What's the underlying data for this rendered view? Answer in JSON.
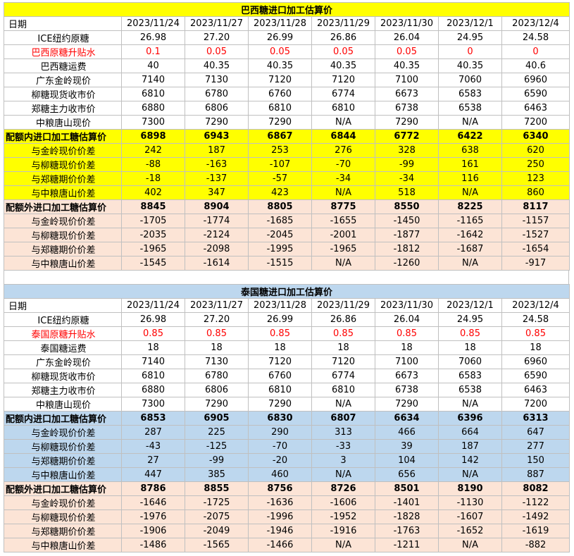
{
  "tables": [
    {
      "title": "巴西糖进口加工估算价",
      "header": [
        "日期",
        "2023/11/24",
        "2023/11/27",
        "2023/11/28",
        "2023/11/29",
        "2023/11/30",
        "2023/12/1",
        "2023/12/4"
      ],
      "rows": [
        [
          "ICE纽约原糖",
          "26.98",
          "27.20",
          "26.99",
          "26.86",
          "26.04",
          "24.95",
          "24.58"
        ],
        [
          "巴西原糖升贴水",
          "0.1",
          "0.05",
          "0.05",
          "0.05",
          "0.05",
          "0",
          "0"
        ],
        [
          "巴西糖运费",
          "40",
          "40.35",
          "40.35",
          "40.35",
          "40.35",
          "40.35",
          "40.6"
        ],
        [
          "广东金岭现价",
          "7140",
          "7130",
          "7120",
          "7120",
          "7100",
          "7060",
          "6960"
        ],
        [
          "柳糖现货收市价",
          "6810",
          "6780",
          "6760",
          "6774",
          "6673",
          "6583",
          "6590"
        ],
        [
          "郑糖主力收市价",
          "6880",
          "6806",
          "6810",
          "6810",
          "6738",
          "6538",
          "6463"
        ],
        [
          "中粮唐山现价",
          "7300",
          "7290",
          "7290",
          "N/A",
          "7290",
          "N/A",
          "7200"
        ],
        [
          "配额内进口加工糖估算价",
          "6898",
          "6943",
          "6867",
          "6844",
          "6772",
          "6422",
          "6340"
        ],
        [
          "与金岭现价价差",
          "242",
          "187",
          "253",
          "276",
          "328",
          "638",
          "620"
        ],
        [
          "与柳糖现价价差",
          "-88",
          "-163",
          "-107",
          "-70",
          "-99",
          "161",
          "250"
        ],
        [
          "与郑糖期价价差",
          "-18",
          "-137",
          "-57",
          "-34",
          "-34",
          "116",
          "123"
        ],
        [
          "与中粮唐山价差",
          "402",
          "347",
          "423",
          "N/A",
          "518",
          "N/A",
          "860"
        ],
        [
          "配额外进口加工糖估算价",
          "8845",
          "8904",
          "8805",
          "8775",
          "8550",
          "8225",
          "8117"
        ],
        [
          "与金岭现价价差",
          "-1705",
          "-1774",
          "-1685",
          "-1655",
          "-1450",
          "-1165",
          "-1157"
        ],
        [
          "与柳糖现价价差",
          "-2035",
          "-2124",
          "-2045",
          "-2001",
          "-1877",
          "-1642",
          "-1527"
        ],
        [
          "与郑糖期价价差",
          "-1965",
          "-2098",
          "-1995",
          "-1965",
          "-1812",
          "-1687",
          "-1654"
        ],
        [
          "与中粮唐山价差",
          "-1545",
          "-1614",
          "-1515",
          "N/A",
          "-1260",
          "N/A",
          "-917"
        ]
      ]
    },
    {
      "title": "泰国糖进口加工估算价",
      "header": [
        "日期",
        "2023/11/24",
        "2023/11/27",
        "2023/11/28",
        "2023/11/29",
        "2023/11/30",
        "2023/12/1",
        "2023/12/4"
      ],
      "rows": [
        [
          "ICE纽约原糖",
          "26.98",
          "27.20",
          "26.99",
          "26.86",
          "26.04",
          "24.95",
          "24.58"
        ],
        [
          "泰国原糖升贴水",
          "0.85",
          "0.85",
          "0.85",
          "0.85",
          "0.85",
          "0.85",
          "0.85"
        ],
        [
          "泰国糖运费",
          "18",
          "18",
          "18",
          "18",
          "18",
          "18",
          "18"
        ],
        [
          "广东金岭现价",
          "7140",
          "7130",
          "7120",
          "7120",
          "7100",
          "7060",
          "6960"
        ],
        [
          "柳糖现货收市价",
          "6810",
          "6780",
          "6760",
          "6774",
          "6673",
          "6583",
          "6590"
        ],
        [
          "郑糖主力收市价",
          "6880",
          "6806",
          "6810",
          "6810",
          "6738",
          "6538",
          "6463"
        ],
        [
          "中粮唐山现价",
          "7300",
          "7290",
          "7290",
          "N/A",
          "7290",
          "N/A",
          "7200"
        ],
        [
          "配额内进口加工糖估算价",
          "6853",
          "6905",
          "6830",
          "6807",
          "6634",
          "6396",
          "6313"
        ],
        [
          "与金岭现价价差",
          "287",
          "225",
          "290",
          "313",
          "466",
          "664",
          "647"
        ],
        [
          "与柳糖现价价差",
          "-43",
          "-125",
          "-70",
          "-33",
          "39",
          "187",
          "277"
        ],
        [
          "与郑糖期价价差",
          "27",
          "-99",
          "-20",
          "3",
          "104",
          "142",
          "150"
        ],
        [
          "与中粮唐山价差",
          "447",
          "385",
          "460",
          "N/A",
          "656",
          "N/A",
          "887"
        ],
        [
          "配额外进口加工糖估算价",
          "8786",
          "8855",
          "8756",
          "8726",
          "8501",
          "8190",
          "8082"
        ],
        [
          "与金岭现价价差",
          "-1646",
          "-1725",
          "-1636",
          "-1606",
          "-1401",
          "-1130",
          "-1122"
        ],
        [
          "与柳糖现价价差",
          "-1976",
          "-2075",
          "-1996",
          "-1952",
          "-1828",
          "-1607",
          "-1492"
        ],
        [
          "与郑糖期价价差",
          "-1906",
          "-2049",
          "-1946",
          "-1916",
          "-1763",
          "-1652",
          "-1619"
        ],
        [
          "与中粮唐山价差",
          "-1486",
          "-1565",
          "-1466",
          "N/A",
          "-1211",
          "N/A",
          "-882"
        ]
      ]
    }
  ]
}
